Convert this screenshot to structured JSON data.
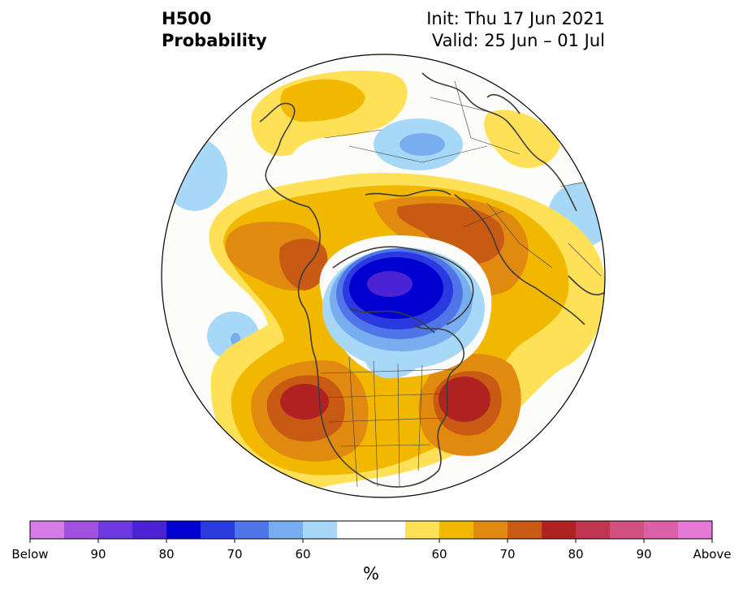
{
  "title": {
    "line1": "H500",
    "line2": "Probability",
    "init": "Init: Thu 17 Jun 2021",
    "valid": "Valid: 25 Jun – 01 Jul"
  },
  "colorbar": {
    "unit": "%",
    "colors": [
      "#d67be8",
      "#a250e0",
      "#6c3ae0",
      "#4b22d4",
      "#0000d0",
      "#2b3ae0",
      "#5075e8",
      "#78aef0",
      "#a8d8f8",
      "#ffffff",
      "#ffffff",
      "#ffe158",
      "#f2b800",
      "#e08a10",
      "#c85a14",
      "#b02222",
      "#c03550",
      "#d05080",
      "#dc60a8",
      "#e678d8"
    ],
    "tick_labels": [
      "Below",
      "90",
      "80",
      "70",
      "60",
      "60",
      "70",
      "80",
      "90",
      "Above"
    ],
    "tick_edges": [
      0,
      2,
      4,
      6,
      8,
      12,
      14,
      16,
      18,
      20
    ]
  },
  "map": {
    "projection": "north-polar-stereographic",
    "anomalies": [
      {
        "region": "Arctic / North Pole",
        "sign": "below",
        "max_category": "80-90"
      },
      {
        "region": "Siberia",
        "sign": "below",
        "max_category": "<60"
      },
      {
        "region": "Western North America",
        "sign": "above",
        "max_category": "75-80"
      },
      {
        "region": "North Atlantic",
        "sign": "above",
        "max_category": "75-80"
      },
      {
        "region": "Northern Europe / Scandinavia",
        "sign": "above",
        "max_category": "70-75"
      },
      {
        "region": "North Pacific",
        "sign": "above",
        "max_category": "65-70"
      }
    ]
  }
}
